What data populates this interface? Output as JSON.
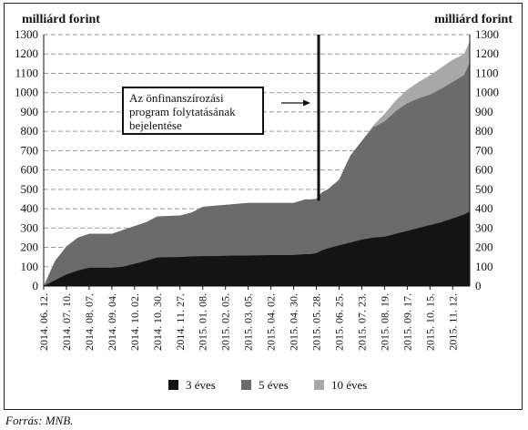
{
  "chart_data": {
    "type": "area",
    "stacked": true,
    "ylabel_left": "milliárd forint",
    "ylabel_right": "milliárd forint",
    "ylim": [
      0,
      1300
    ],
    "yticks": [
      0,
      100,
      200,
      300,
      400,
      500,
      600,
      700,
      800,
      900,
      1000,
      1100,
      1200,
      1300
    ],
    "grid": "horizontal dashed",
    "x_tick_labels": [
      "2014. 06. 12.",
      "2014. 07. 10.",
      "2014. 08. 07.",
      "2014. 09. 04.",
      "2014. 10. 02.",
      "2014. 10. 30.",
      "2014. 11. 27.",
      "2015. 01. 08.",
      "2015. 02. 05.",
      "2015. 03. 05.",
      "2015. 04. 02.",
      "2015. 04. 30.",
      "2015. 05. 28.",
      "2015. 06. 25.",
      "2015. 07. 23.",
      "2015. 08. 19.",
      "2015. 09. 17.",
      "2015. 10. 15.",
      "2015. 11. 12."
    ],
    "x_tick_index": [
      0,
      4,
      8,
      12,
      16,
      20,
      24,
      28,
      32,
      36,
      40,
      44,
      48,
      52,
      56,
      60,
      64,
      68,
      72
    ],
    "x_index_max": 75,
    "series": [
      {
        "name": "3 éves",
        "color": "#141414",
        "x_index": [
          0,
          2,
          4,
          6,
          8,
          12,
          14,
          16,
          18,
          20,
          24,
          26,
          28,
          30,
          34,
          36,
          40,
          42,
          44,
          46,
          47,
          48,
          49,
          50,
          52,
          54,
          56,
          58,
          60,
          62,
          64,
          66,
          68,
          70,
          72,
          74,
          75
        ],
        "values": [
          0,
          30,
          60,
          80,
          95,
          95,
          100,
          115,
          130,
          148,
          150,
          153,
          155,
          155,
          158,
          158,
          160,
          160,
          160,
          165,
          165,
          170,
          185,
          195,
          210,
          225,
          240,
          250,
          255,
          270,
          285,
          300,
          315,
          330,
          350,
          370,
          385
        ]
      },
      {
        "name": "5 éves",
        "color": "#6b6b6b",
        "x_index": [
          0,
          2,
          4,
          6,
          8,
          12,
          14,
          16,
          18,
          20,
          24,
          26,
          28,
          30,
          34,
          36,
          40,
          42,
          44,
          46,
          47,
          48,
          49,
          50,
          52,
          54,
          56,
          58,
          60,
          62,
          64,
          66,
          68,
          70,
          72,
          74,
          75
        ],
        "values": [
          0,
          100,
          145,
          170,
          175,
          175,
          190,
          195,
          200,
          212,
          215,
          227,
          255,
          260,
          267,
          272,
          270,
          270,
          270,
          283,
          283,
          281,
          300,
          305,
          340,
          450,
          510,
          570,
          595,
          635,
          660,
          670,
          675,
          690,
          705,
          720,
          770
        ]
      },
      {
        "name": "10 éves",
        "color": "#a8a8a8",
        "x_index": [
          0,
          2,
          4,
          6,
          8,
          12,
          14,
          16,
          18,
          20,
          24,
          26,
          28,
          30,
          34,
          36,
          40,
          42,
          44,
          46,
          47,
          48,
          49,
          50,
          52,
          54,
          56,
          58,
          60,
          62,
          64,
          66,
          68,
          70,
          72,
          74,
          75
        ],
        "values": [
          0,
          0,
          0,
          0,
          0,
          0,
          0,
          0,
          0,
          0,
          0,
          0,
          0,
          0,
          0,
          0,
          0,
          0,
          0,
          0,
          0,
          0,
          0,
          0,
          0,
          0,
          0,
          10,
          40,
          55,
          70,
          85,
          100,
          110,
          115,
          110,
          110
        ]
      }
    ],
    "event_marker_x_index": 48.4
  },
  "annotation": {
    "lines": [
      "Az önfinanszírozási",
      "program folytatásának",
      "bejelentése"
    ]
  },
  "legend": [
    {
      "label": "3 éves",
      "color": "#141414"
    },
    {
      "label": "5 éves",
      "color": "#6b6b6b"
    },
    {
      "label": "10 éves",
      "color": "#a8a8a8"
    }
  ],
  "source_note": "Forrás: MNB."
}
